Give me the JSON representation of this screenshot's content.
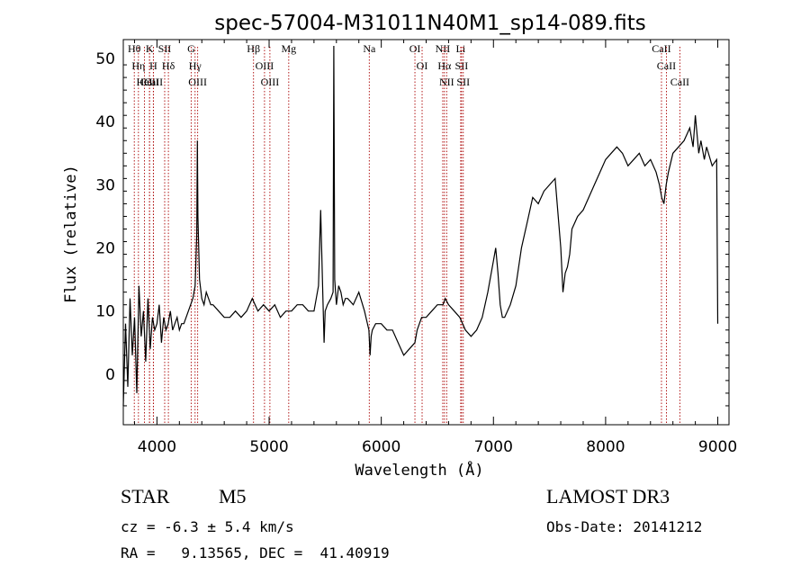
{
  "chart_data": {
    "type": "line",
    "title": "spec-57004-M31011N40M1_sp14-089.fits",
    "xlabel": "Wavelength (Å)",
    "ylabel": "Flux (relative)",
    "xlim": [
      3700,
      9100
    ],
    "ylim": [
      -8,
      53
    ],
    "xticks": [
      4000,
      5000,
      6000,
      7000,
      8000,
      9000
    ],
    "yticks": [
      0,
      10,
      20,
      30,
      40,
      50
    ],
    "grid": false,
    "series": [
      {
        "name": "flux",
        "x": [
          3700,
          3720,
          3740,
          3760,
          3780,
          3800,
          3820,
          3840,
          3860,
          3880,
          3900,
          3920,
          3940,
          3960,
          3980,
          4000,
          4020,
          4040,
          4060,
          4080,
          4100,
          4120,
          4140,
          4160,
          4180,
          4200,
          4220,
          4240,
          4260,
          4280,
          4300,
          4320,
          4340,
          4355,
          4360,
          4365,
          4380,
          4400,
          4420,
          4440,
          4460,
          4480,
          4500,
          4550,
          4600,
          4650,
          4700,
          4750,
          4800,
          4850,
          4900,
          4950,
          5000,
          5050,
          5100,
          5150,
          5200,
          5250,
          5300,
          5350,
          5400,
          5420,
          5440,
          5460,
          5480,
          5490,
          5500,
          5520,
          5550,
          5570,
          5577,
          5585,
          5600,
          5620,
          5640,
          5660,
          5680,
          5700,
          5750,
          5800,
          5850,
          5890,
          5900,
          5910,
          5920,
          5950,
          6000,
          6050,
          6100,
          6150,
          6200,
          6250,
          6300,
          6320,
          6340,
          6360,
          6400,
          6450,
          6500,
          6550,
          6570,
          6600,
          6650,
          6700,
          6750,
          6800,
          6850,
          6900,
          6950,
          7000,
          7020,
          7040,
          7060,
          7080,
          7100,
          7150,
          7200,
          7250,
          7300,
          7350,
          7400,
          7450,
          7500,
          7550,
          7600,
          7620,
          7640,
          7660,
          7680,
          7700,
          7750,
          7800,
          7850,
          7900,
          7950,
          8000,
          8050,
          8100,
          8150,
          8200,
          8250,
          8300,
          8350,
          8400,
          8450,
          8480,
          8500,
          8520,
          8540,
          8560,
          8600,
          8650,
          8700,
          8750,
          8780,
          8800,
          8830,
          8850,
          8880,
          8900,
          8950,
          8990,
          9000
        ],
        "y": [
          -5,
          8,
          -2,
          12,
          3,
          9,
          -3,
          14,
          6,
          10,
          2,
          12,
          4,
          9,
          7,
          8,
          11,
          5,
          9,
          7,
          8,
          10,
          7,
          8,
          9,
          7,
          8,
          8,
          9,
          10,
          11,
          12,
          14,
          22,
          37,
          25,
          15,
          12,
          11,
          13,
          12,
          11,
          11,
          10,
          9,
          9,
          10,
          9,
          10,
          12,
          10,
          11,
          10,
          11,
          9,
          10,
          10,
          11,
          11,
          10,
          10,
          12,
          14,
          26,
          12,
          5,
          10,
          11,
          12,
          13,
          52,
          15,
          11,
          14,
          13,
          11,
          12,
          12,
          11,
          13,
          10,
          7,
          3,
          6,
          7,
          8,
          8,
          7,
          7,
          5,
          3,
          4,
          5,
          7,
          8,
          9,
          9,
          10,
          11,
          11,
          12,
          11,
          10,
          9,
          7,
          6,
          7,
          9,
          13,
          18,
          20,
          16,
          11,
          9,
          9,
          11,
          14,
          20,
          24,
          28,
          27,
          29,
          30,
          31,
          20,
          13,
          16,
          17,
          19,
          23,
          25,
          26,
          28,
          30,
          32,
          34,
          35,
          36,
          35,
          33,
          34,
          35,
          33,
          34,
          32,
          30,
          28,
          27,
          30,
          32,
          35,
          36,
          37,
          39,
          36,
          41,
          35,
          37,
          34,
          36,
          33,
          34,
          8
        ]
      }
    ],
    "line_markers": [
      {
        "label": "CaII",
        "wavelength": 3934
      },
      {
        "label": "CaII",
        "wavelength": 3969
      },
      {
        "label": "Hθ",
        "wavelength": 3798
      },
      {
        "label": "Hη",
        "wavelength": 3835
      },
      {
        "label": "HeI",
        "wavelength": 3889
      },
      {
        "label": "K",
        "wavelength": 3934
      },
      {
        "label": "H",
        "wavelength": 3968
      },
      {
        "label": "SII",
        "wavelength": 4069
      },
      {
        "label": "Hδ",
        "wavelength": 4102
      },
      {
        "label": "OIII",
        "wavelength": 4363
      },
      {
        "label": "Hγ",
        "wavelength": 4340
      },
      {
        "label": "G",
        "wavelength": 4305
      },
      {
        "label": "Hβ",
        "wavelength": 4861
      },
      {
        "label": "OIII",
        "wavelength": 4959
      },
      {
        "label": "OIII",
        "wavelength": 5007
      },
      {
        "label": "Mg",
        "wavelength": 5175
      },
      {
        "label": "Na",
        "wavelength": 5893
      },
      {
        "label": "OI",
        "wavelength": 6300
      },
      {
        "label": "OI",
        "wavelength": 6364
      },
      {
        "label": "Hα",
        "wavelength": 6563
      },
      {
        "label": "NII",
        "wavelength": 6548
      },
      {
        "label": "NII",
        "wavelength": 6583
      },
      {
        "label": "SII",
        "wavelength": 6716
      },
      {
        "label": "SII",
        "wavelength": 6731
      },
      {
        "label": "Li",
        "wavelength": 6708
      },
      {
        "label": "CaII",
        "wavelength": 8498
      },
      {
        "label": "CaII",
        "wavelength": 8542
      },
      {
        "label": "CaII",
        "wavelength": 8662
      }
    ]
  },
  "info": {
    "object_class": "STAR",
    "subclass": "M5",
    "survey": "LAMOST DR3",
    "velocity": "cz = -6.3 ± 5.4 km/s",
    "obs_date": "Obs-Date: 20141212",
    "coords": "RA =   9.13565, DEC =  41.40919"
  },
  "colors": {
    "marker": "#aa0000",
    "spectrum": "#000000",
    "axis": "#000000"
  }
}
